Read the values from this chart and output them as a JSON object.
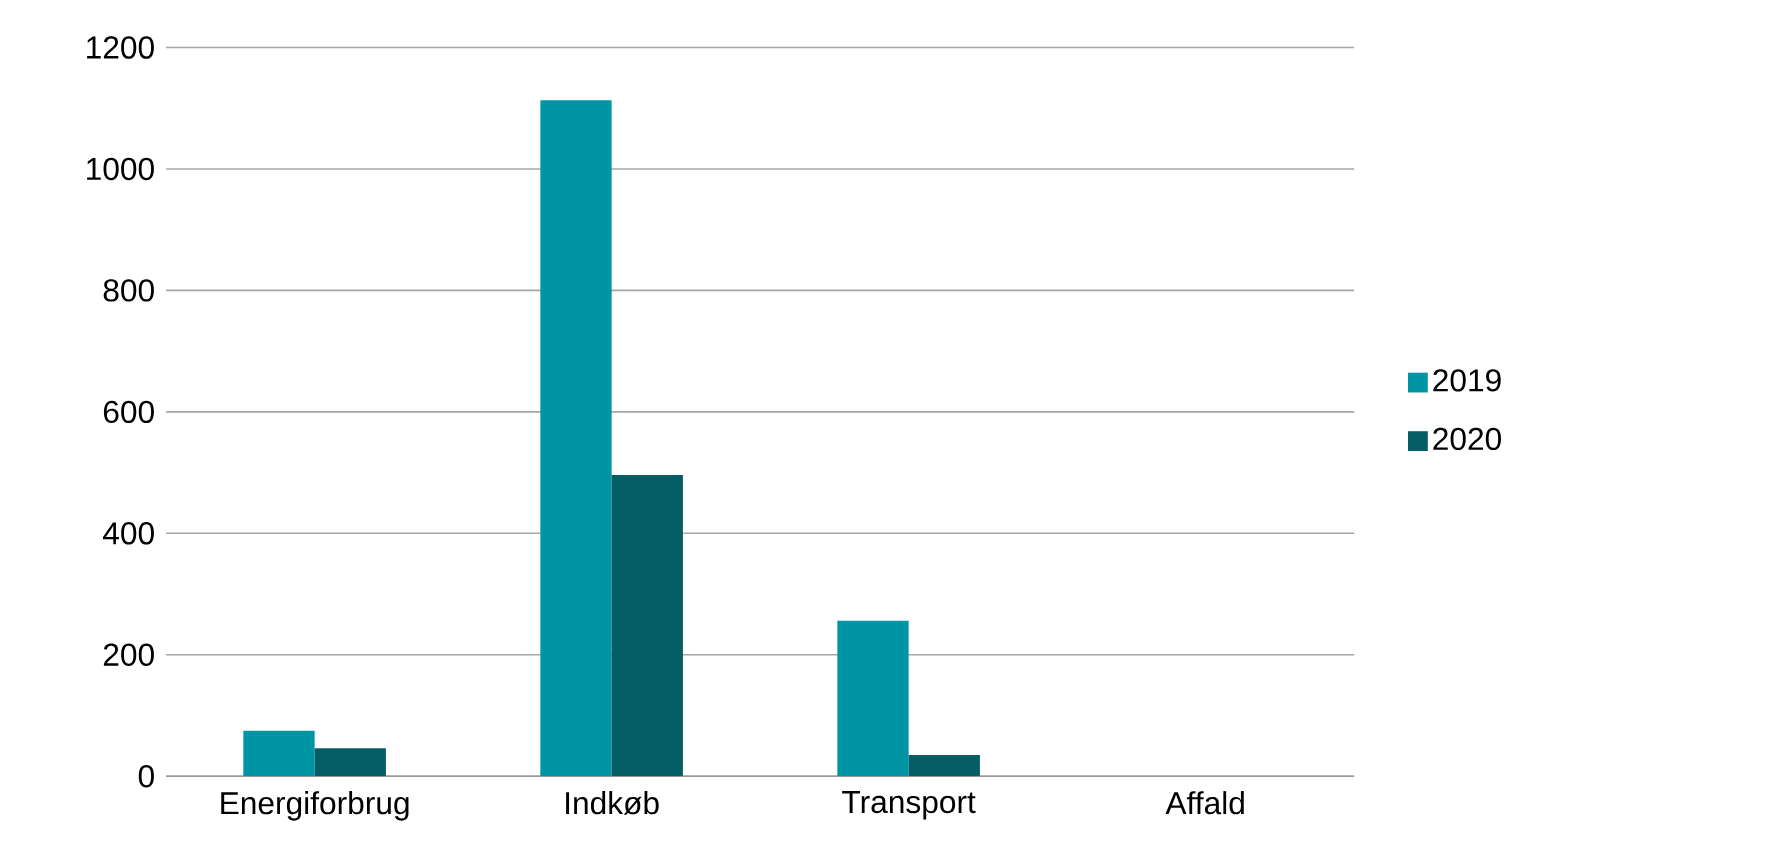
{
  "chart_data": {
    "type": "bar",
    "categories": [
      "Energiforbrug",
      "Indkøb",
      "Transport",
      "Affald"
    ],
    "series": [
      {
        "name": "2019",
        "color": "#0095a5",
        "values": [
          75,
          1113,
          256,
          0
        ]
      },
      {
        "name": "2020",
        "color": "#055d66",
        "values": [
          46,
          496,
          35,
          0
        ]
      }
    ],
    "ylim": [
      0,
      1200
    ],
    "yticks": [
      0,
      200,
      400,
      600,
      800,
      1000,
      1200
    ],
    "grid": "y",
    "legend": "right"
  }
}
